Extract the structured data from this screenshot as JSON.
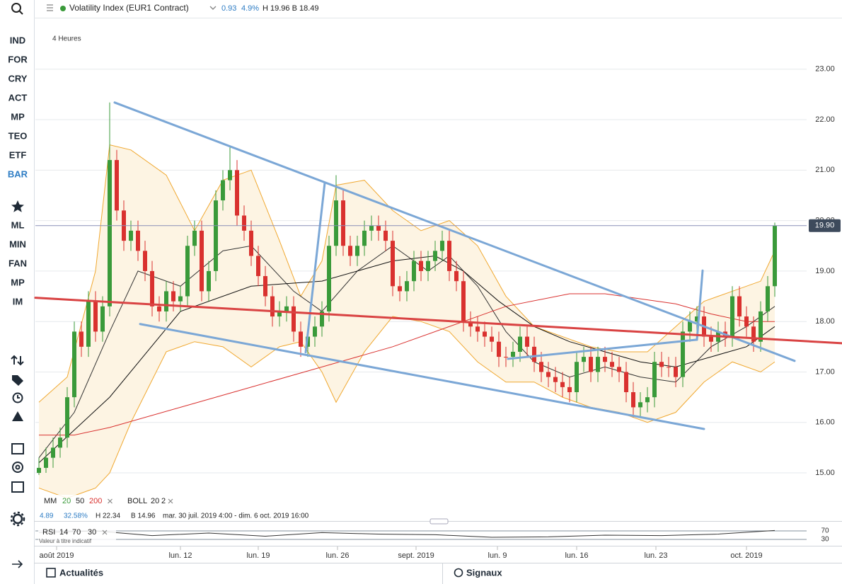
{
  "header": {
    "title": "Volatility Index (EUR1 Contract)",
    "change": "0.93",
    "change_pct": "4.9%",
    "high_low": "H 19.96 B 18.49"
  },
  "sidebar": {
    "markets": [
      "IND",
      "FOR",
      "CRY",
      "ACT",
      "MP",
      "TEO",
      "ETF",
      "BAR"
    ],
    "active": "BAR",
    "active_color": "#2d7cc4",
    "tools": [
      "ML",
      "MIN",
      "FAN",
      "MP",
      "IM"
    ]
  },
  "footer": {
    "news": "Actualités",
    "signals": "Signaux"
  },
  "chart_data": {
    "type": "candlestick",
    "timeframe": "4 Heures",
    "xlim": [
      -0.5,
      108.5
    ],
    "ylim": [
      14.58,
      23.81
    ],
    "grid": true,
    "yticks": [
      {
        "value": 15,
        "label": "15.00"
      },
      {
        "value": 16,
        "label": "16.00"
      },
      {
        "value": 17,
        "label": "17.00"
      },
      {
        "value": 18,
        "label": "18.00"
      },
      {
        "value": 19,
        "label": "19.00"
      },
      {
        "value": 20,
        "label": "20.00"
      },
      {
        "value": 21,
        "label": "21.00"
      },
      {
        "value": 22,
        "label": "22.00"
      },
      {
        "value": 23,
        "label": "23.00"
      }
    ],
    "xticks": [
      {
        "value": 2.5,
        "label": "août 2019"
      },
      {
        "value": 20,
        "label": "lun. 12"
      },
      {
        "value": 31,
        "label": "lun. 19"
      },
      {
        "value": 42.2,
        "label": "lun. 26"
      },
      {
        "value": 53.3,
        "label": "sept. 2019"
      },
      {
        "value": 64.8,
        "label": "lun. 9"
      },
      {
        "value": 76,
        "label": "lun. 16"
      },
      {
        "value": 87.2,
        "label": "lun. 23"
      },
      {
        "value": 100,
        "label": "oct. 2019"
      }
    ],
    "up_color": "#3a9a3a",
    "down_color": "#d9312f",
    "open": [
      15.0,
      15.1,
      15.3,
      15.5,
      15.7,
      16.5,
      17.8,
      17.5,
      18.4,
      17.8,
      18.3,
      21.2,
      20.2,
      19.6,
      19.8,
      19.4,
      19.0,
      18.3,
      18.2,
      18.6,
      18.4,
      18.5,
      19.5,
      19.8,
      18.6,
      19.0,
      20.4,
      20.8,
      21.0,
      20.1,
      19.8,
      19.3,
      18.9,
      18.5,
      18.1,
      18.2,
      18.3,
      17.8,
      17.5,
      17.7,
      17.9,
      18.2,
      19.5,
      20.4,
      19.5,
      19.3,
      19.5,
      19.8,
      19.9,
      19.8,
      19.6,
      18.7,
      18.6,
      18.8,
      19.2,
      19.0,
      19.2,
      19.4,
      19.6,
      19.0,
      18.8,
      18.0,
      17.9,
      17.8,
      17.7,
      17.6,
      17.3,
      17.3,
      17.4,
      17.7,
      17.5,
      17.2,
      17.0,
      16.9,
      16.8,
      16.7,
      16.6,
      17.2,
      17.3,
      17.0,
      17.3,
      17.2,
      17.1,
      17.0,
      16.6,
      16.3,
      16.4,
      16.5,
      17.2,
      17.1,
      17.1,
      16.9,
      17.8,
      18.0,
      18.1,
      17.7,
      17.6,
      17.8,
      17.7,
      18.5,
      18.1,
      17.9,
      17.6,
      18.2,
      18.7
    ],
    "high": [
      15.3,
      15.5,
      15.7,
      15.9,
      16.7,
      18.0,
      18.0,
      18.6,
      18.6,
      18.5,
      22.34,
      21.4,
      20.4,
      20.0,
      20.0,
      19.6,
      19.2,
      18.5,
      18.8,
      18.8,
      18.7,
      19.7,
      20.0,
      20.0,
      19.2,
      20.6,
      21.0,
      21.45,
      21.2,
      20.3,
      20.0,
      19.5,
      19.1,
      18.7,
      18.4,
      18.5,
      18.5,
      18.0,
      17.9,
      18.1,
      18.4,
      19.7,
      20.9,
      20.6,
      19.7,
      19.7,
      20.0,
      20.1,
      20.1,
      20.0,
      19.8,
      18.9,
      19.0,
      19.4,
      19.4,
      19.4,
      19.6,
      19.8,
      19.8,
      19.2,
      19.0,
      18.2,
      18.1,
      18.0,
      17.9,
      17.8,
      17.5,
      17.6,
      17.9,
      17.9,
      17.7,
      17.4,
      17.2,
      17.1,
      17.0,
      16.9,
      17.4,
      17.5,
      17.5,
      17.5,
      17.5,
      17.4,
      17.3,
      17.2,
      16.8,
      16.6,
      16.7,
      17.4,
      17.4,
      17.3,
      17.3,
      18.0,
      18.2,
      18.3,
      18.3,
      17.9,
      18.0,
      18.0,
      18.7,
      18.7,
      18.3,
      18.1,
      18.4,
      18.9,
      19.96
    ],
    "low": [
      14.96,
      15.0,
      15.1,
      15.3,
      15.5,
      16.3,
      17.3,
      17.3,
      17.6,
      17.6,
      18.1,
      20.0,
      19.4,
      19.4,
      19.2,
      18.8,
      18.1,
      18.0,
      18.0,
      18.2,
      18.2,
      18.3,
      19.3,
      18.4,
      18.4,
      18.8,
      20.2,
      20.6,
      19.9,
      19.6,
      19.1,
      18.7,
      18.3,
      17.9,
      17.9,
      18.0,
      17.6,
      17.3,
      17.3,
      17.5,
      17.7,
      18.0,
      19.3,
      19.3,
      19.1,
      19.1,
      19.3,
      19.6,
      19.6,
      19.4,
      18.5,
      18.4,
      18.4,
      18.6,
      18.8,
      18.8,
      19.0,
      19.2,
      18.8,
      18.6,
      17.8,
      17.7,
      17.6,
      17.5,
      17.4,
      17.1,
      17.1,
      17.1,
      17.2,
      17.3,
      17.0,
      16.8,
      16.7,
      16.6,
      16.5,
      16.4,
      16.4,
      17.0,
      16.8,
      16.8,
      17.0,
      16.9,
      16.8,
      16.4,
      16.1,
      16.1,
      16.2,
      16.3,
      16.9,
      16.9,
      16.7,
      16.7,
      17.6,
      17.8,
      17.5,
      17.4,
      17.4,
      17.5,
      17.5,
      17.9,
      17.7,
      17.4,
      17.4,
      18.0,
      18.49
    ],
    "close": [
      15.1,
      15.3,
      15.5,
      15.7,
      16.5,
      17.8,
      17.5,
      18.4,
      17.8,
      18.3,
      21.2,
      20.2,
      19.6,
      19.8,
      19.4,
      19.0,
      18.3,
      18.2,
      18.6,
      18.4,
      18.5,
      19.5,
      19.8,
      18.6,
      19.0,
      20.4,
      20.8,
      21.0,
      20.1,
      19.8,
      19.3,
      18.9,
      18.5,
      18.1,
      18.2,
      18.3,
      17.8,
      17.5,
      17.7,
      17.9,
      18.2,
      19.5,
      20.4,
      19.5,
      19.3,
      19.5,
      19.8,
      19.9,
      19.8,
      19.6,
      18.7,
      18.6,
      18.8,
      19.2,
      19.0,
      19.2,
      19.4,
      19.6,
      19.0,
      18.8,
      18.0,
      17.9,
      17.8,
      17.7,
      17.6,
      17.3,
      17.3,
      17.4,
      17.7,
      17.5,
      17.2,
      17.0,
      16.9,
      16.8,
      16.7,
      16.6,
      17.2,
      17.3,
      17.0,
      17.3,
      17.2,
      17.1,
      17.0,
      16.6,
      16.3,
      16.4,
      16.5,
      17.2,
      17.1,
      17.1,
      16.9,
      17.8,
      18.0,
      18.1,
      17.7,
      17.6,
      17.8,
      17.7,
      18.5,
      18.1,
      17.9,
      17.6,
      18.2,
      18.7,
      19.9
    ],
    "last_price": {
      "value": 19.9,
      "label": "19.90"
    },
    "last_price_color": "#3d4a5c",
    "moving_averages": {
      "label": "MM",
      "series": [
        {
          "name": 20,
          "color": "#3a9a3a",
          "line_color": "#333333",
          "x": [
            0,
            5,
            10,
            14,
            20,
            26,
            30,
            36,
            40,
            45,
            50,
            55,
            58,
            62,
            66,
            70,
            75,
            80,
            85,
            90,
            95,
            100,
            104
          ],
          "values": [
            15.3,
            16.2,
            17.8,
            19.0,
            18.7,
            19.4,
            19.5,
            18.6,
            18.2,
            19.0,
            19.5,
            19.0,
            19.3,
            18.7,
            17.8,
            17.2,
            16.9,
            17.1,
            16.9,
            16.8,
            17.5,
            17.9,
            18.3
          ]
        },
        {
          "name": 50,
          "color": "#222222",
          "line_color": "#111111",
          "x": [
            0,
            10,
            20,
            30,
            40,
            50,
            56,
            60,
            65,
            70,
            75,
            80,
            85,
            90,
            95,
            100,
            104
          ],
          "values": [
            15.2,
            16.5,
            18.2,
            18.7,
            18.8,
            19.2,
            19.3,
            19.0,
            18.4,
            17.9,
            17.6,
            17.4,
            17.2,
            17.1,
            17.3,
            17.5,
            17.9
          ]
        },
        {
          "name": 200,
          "color": "#d9312f",
          "line_color": "#d9312f",
          "x": [
            0,
            5,
            10,
            20,
            30,
            40,
            50,
            60,
            66,
            75,
            80,
            90,
            95,
            100,
            104
          ],
          "values": [
            15.75,
            15.75,
            15.9,
            16.3,
            16.7,
            17.1,
            17.5,
            18.0,
            18.3,
            18.55,
            18.55,
            18.35,
            18.15,
            18.0,
            18.0
          ]
        }
      ]
    },
    "bollinger": {
      "label": "BOLL",
      "period": 20,
      "width": 2,
      "color": "#f0a830",
      "fill": "#fdf4e3",
      "x": [
        0,
        4,
        8,
        10,
        13,
        18,
        22,
        26,
        30,
        34,
        37,
        40,
        42,
        46,
        50,
        54,
        58,
        62,
        66,
        70,
        74,
        78,
        82,
        86,
        90,
        94,
        98,
        102,
        104
      ],
      "upper": [
        16.4,
        16.9,
        19.0,
        21.5,
        21.4,
        20.9,
        19.8,
        20.8,
        21.0,
        19.6,
        18.5,
        19.2,
        20.7,
        20.8,
        20.2,
        19.8,
        20.0,
        19.5,
        18.5,
        17.9,
        17.7,
        17.5,
        17.4,
        17.4,
        17.9,
        18.4,
        18.6,
        18.8,
        19.4
      ],
      "lower": [
        14.7,
        14.5,
        14.7,
        15.0,
        16.0,
        17.4,
        17.6,
        17.5,
        17.1,
        17.5,
        17.6,
        17.0,
        16.4,
        17.4,
        18.1,
        18.0,
        17.8,
        17.2,
        16.8,
        16.8,
        16.5,
        16.3,
        16.2,
        16.0,
        16.2,
        16.8,
        17.2,
        17.0,
        17.2
      ]
    },
    "trendlines": [
      {
        "color": "#7ba7d6",
        "x": [
          10.7,
          106.8
        ],
        "y": [
          22.34,
          17.22
        ]
      },
      {
        "color": "#7ba7d6",
        "x": [
          14.3,
          94
        ],
        "y": [
          17.95,
          15.87
        ]
      },
      {
        "color": "#7ba7d6",
        "x": [
          37.7,
          40.4
        ],
        "y": [
          17.39,
          20.75
        ]
      },
      {
        "color": "#7ba7d6",
        "x": [
          66.3,
          93
        ],
        "y": [
          17.26,
          17.64
        ]
      },
      {
        "color": "#7ba7d6",
        "x": [
          93,
          93.8
        ],
        "y": [
          17.64,
          19.01
        ]
      },
      {
        "color": "#d94343",
        "x": [
          -0.5,
          113.5
        ],
        "y": [
          18.47,
          17.57
        ]
      }
    ],
    "info": {
      "change": "4.89",
      "change_pct": "32.58%",
      "high": "H 22.34",
      "low": "B 14.96",
      "range": "mar. 30 juil. 2019 4:00 - dim. 6 oct. 2019 16:00"
    },
    "rsi": {
      "label": "RSI",
      "period": 14,
      "upper": 70,
      "lower": 30,
      "note": "Valeur à titre indicatif",
      "color": "#333333",
      "ylim": [
        10,
        90
      ],
      "yticks": [
        70,
        30
      ],
      "x": [
        0,
        8,
        16,
        24,
        32,
        40,
        48,
        56,
        64,
        72,
        80,
        88,
        96,
        104
      ],
      "values": [
        62,
        70,
        48,
        60,
        45,
        62,
        55,
        52,
        40,
        42,
        50,
        48,
        55,
        72
      ]
    }
  }
}
